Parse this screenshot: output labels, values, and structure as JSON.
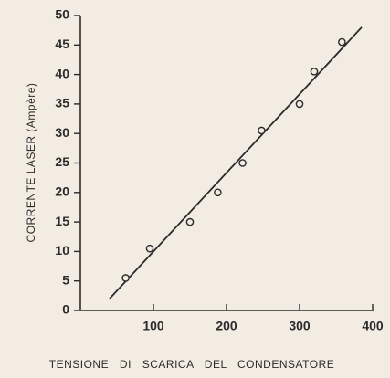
{
  "chart_data": {
    "type": "scatter",
    "x_label": "TENSIONE DI SCARICA DEL CONDENSATORE",
    "y_label": "CORRENTE LASER (Ampère)",
    "x": [
      62,
      95,
      150,
      188,
      222,
      248,
      300,
      320,
      358
    ],
    "values": [
      5.5,
      10.5,
      15,
      20,
      25,
      30.5,
      35,
      40.5,
      45.5
    ],
    "fit_line": {
      "x": [
        40,
        385
      ],
      "y": [
        2,
        48
      ]
    },
    "color": "#2b2b2b",
    "xlim": [
      0,
      400
    ],
    "xticks": [
      100,
      200,
      300,
      400
    ],
    "ylim": [
      0,
      50
    ],
    "yticks": [
      0,
      5,
      10,
      15,
      20,
      25,
      30,
      35,
      40,
      45,
      50
    ],
    "grid": false
  }
}
